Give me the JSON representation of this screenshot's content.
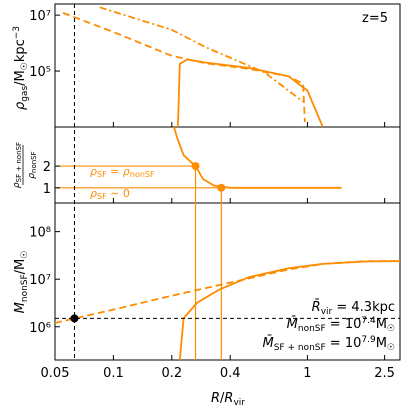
{
  "colors": {
    "accent": "#ff8c00",
    "axis": "#000000"
  },
  "chart_data": [
    {
      "panel": "top",
      "type": "line",
      "ylabel": "ρ_gas/M☉kpc⁻³",
      "yscale": "log",
      "ytick_labels": [
        "10⁵",
        "10⁷"
      ],
      "yticks": [
        100000,
        10000000
      ],
      "ylim": [
        1000,
        25000000
      ],
      "annotation": "z=5",
      "series": [
        {
          "style": "dashdot",
          "x": [
            0.085,
            0.12,
            0.2,
            0.3,
            0.6,
            0.95
          ],
          "y": [
            19000000,
            9000000,
            3000000,
            700000,
            90000,
            8000
          ]
        },
        {
          "style": "dashed",
          "x": [
            0.055,
            0.1,
            0.2,
            0.3,
            0.5,
            0.8,
            0.95,
            0.97
          ],
          "y": [
            12000000,
            2500000,
            350000,
            190000,
            120000,
            65000,
            35000,
            1500
          ]
        },
        {
          "style": "solid",
          "x": [
            0.215,
            0.22,
            0.24,
            0.3,
            0.5,
            0.8,
            1.0,
            1.2
          ],
          "y": [
            1000,
            180000,
            260000,
            200000,
            130000,
            65000,
            20000,
            1000
          ]
        }
      ]
    },
    {
      "panel": "middle",
      "type": "line",
      "ylabel": "ρ_SF+nonSF/ρ_nonSF",
      "yticks": [
        1,
        2
      ],
      "ytick_labels": [
        "1",
        "2"
      ],
      "ylim": [
        0.3,
        3.8
      ],
      "annotations": [
        "ρ_SF = ρ_nonSF",
        "ρ_SF ∼ 0"
      ],
      "markers": [
        {
          "x": 0.265,
          "y": 2.0
        },
        {
          "x": 0.36,
          "y": 1.0
        }
      ],
      "series": [
        {
          "style": "solid",
          "x": [
            0.205,
            0.215,
            0.23,
            0.265,
            0.29,
            0.33,
            0.4,
            1.5
          ],
          "y": [
            3.8,
            3.2,
            2.5,
            2.0,
            1.4,
            1.1,
            1.0,
            1.0
          ]
        }
      ]
    },
    {
      "panel": "bottom",
      "type": "line",
      "ylabel": "M_nonSF/M☉",
      "xlabel": "R/R_vir",
      "xscale": "log",
      "yscale": "log",
      "xlim": [
        0.05,
        3.0
      ],
      "ylim": [
        200000,
        400000000
      ],
      "xticks": [
        0.05,
        0.1,
        0.2,
        0.4,
        1,
        2.5
      ],
      "xtick_labels": [
        "0.05",
        "0.1",
        "0.2",
        "0.4",
        "1",
        "2.5"
      ],
      "yticks": [
        1000000,
        10000000,
        100000000
      ],
      "ytick_labels": [
        "10⁶",
        "10⁷",
        "10⁸"
      ],
      "marker": {
        "x": 0.063,
        "y": 1500000
      },
      "hline_y": 1500000,
      "vline_x": 0.063,
      "legend_text": [
        "R̄_vir = 4.3kpc",
        "M̄_nonSF = 10^7.4 M☉",
        "M̄_SF+nonSF = 10^7.9 M☉"
      ],
      "series": [
        {
          "style": "dashed",
          "x": [
            0.05,
            0.1,
            0.2,
            0.4,
            0.8,
            1.2,
            2.0,
            3.0
          ],
          "y": [
            1200000,
            2300000,
            4500000,
            8500000,
            16000000,
            21000000,
            24000000,
            24000000
          ]
        },
        {
          "style": "solid",
          "x": [
            0.22,
            0.23,
            0.27,
            0.35,
            0.5,
            0.8,
            1.2,
            2.0,
            3.0
          ],
          "y": [
            200000,
            1500000,
            3200000,
            6000000,
            11000000,
            17000000,
            21000000,
            23500000,
            24000000
          ]
        }
      ]
    }
  ]
}
